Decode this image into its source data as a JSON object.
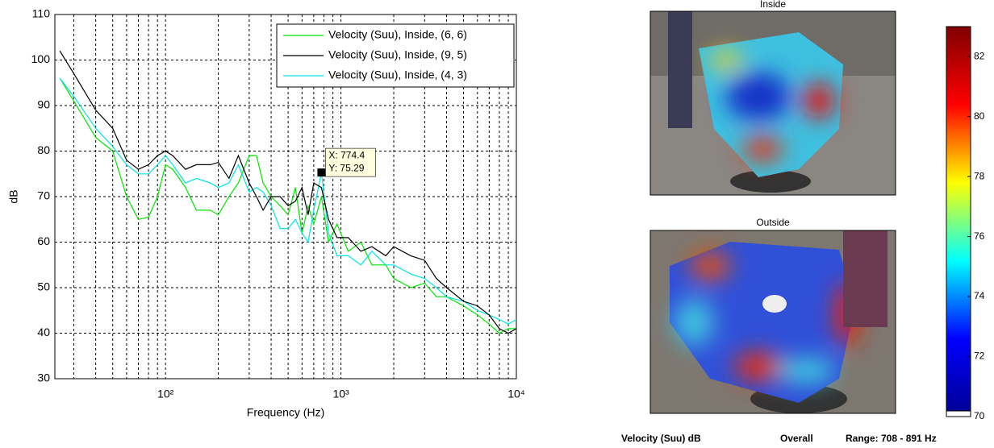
{
  "chart_data": [
    {
      "type": "line",
      "xlabel": "Frequency (Hz)",
      "ylabel": "dB",
      "xscale": "log",
      "grid": true,
      "legend": "top-right",
      "xlim": [
        23.4,
        10000
      ],
      "ylim": [
        30,
        110
      ],
      "xticks": [
        {
          "value": 100,
          "label": "10²"
        },
        {
          "value": 1000,
          "label": "10³"
        },
        {
          "value": 10000,
          "label": "10⁴"
        }
      ],
      "xminorticks": [
        30,
        40,
        50,
        60,
        70,
        80,
        90,
        200,
        300,
        400,
        500,
        600,
        700,
        800,
        900,
        2000,
        3000,
        4000,
        5000,
        6000,
        7000,
        8000,
        9000
      ],
      "yticks": [
        30,
        40,
        50,
        60,
        70,
        80,
        90,
        100,
        110
      ],
      "x": [
        25,
        30,
        40,
        50,
        60,
        70,
        80,
        90,
        100,
        110,
        130,
        150,
        180,
        200,
        230,
        260,
        300,
        330,
        360,
        400,
        450,
        500,
        550,
        600,
        650,
        700,
        774.4,
        850,
        950,
        1100,
        1300,
        1500,
        1800,
        2000,
        2500,
        3000,
        3500,
        4000,
        5000,
        6000,
        7000,
        8000,
        9000,
        10000
      ],
      "series": [
        {
          "name": "Velocity (Suu), Inside, (6, 6)",
          "color": "#00e600",
          "values": [
            96,
            91,
            83,
            80,
            70,
            65,
            65.5,
            70,
            77,
            76,
            72,
            67,
            67,
            66,
            70,
            73,
            79,
            79,
            73,
            70,
            68,
            66,
            72,
            62,
            68,
            64,
            70,
            60,
            64,
            58,
            60,
            55,
            55,
            52,
            50,
            51,
            48,
            48,
            46,
            44,
            42,
            40,
            41,
            41
          ]
        },
        {
          "name": "Velocity (Suu), Inside, (9, 5)",
          "color": "#000000",
          "values": [
            102,
            97,
            89,
            85,
            78,
            76,
            77,
            79,
            80,
            79,
            76,
            77,
            77,
            77.5,
            74,
            79,
            73,
            70,
            67,
            70,
            70,
            68,
            69,
            72,
            66,
            73,
            72,
            65,
            61,
            61,
            58,
            59,
            57,
            59,
            57,
            56,
            52,
            50,
            47,
            46,
            44,
            41,
            40,
            41
          ]
        },
        {
          "name": "Velocity (Suu), Inside, (4, 3)",
          "color": "#00e5e5",
          "values": [
            96,
            92,
            85,
            81,
            77,
            75,
            75,
            77,
            79,
            77,
            73,
            74,
            73,
            72,
            73,
            77,
            71,
            72,
            71,
            68,
            63,
            63,
            65,
            62,
            60,
            67,
            75.29,
            62,
            57,
            57,
            55,
            58,
            55,
            55,
            53,
            52,
            50,
            48,
            47,
            45,
            44,
            43,
            42,
            43
          ]
        }
      ],
      "datatip": {
        "x": 774.4,
        "y": 75.29,
        "label_x": "X: 774.4",
        "label_y": "Y: 75.29"
      }
    },
    {
      "type": "colorbar",
      "panel_titles": [
        "Inside",
        "Outside"
      ],
      "colormap": "jet",
      "clim": [
        70,
        83
      ],
      "ticks": [
        70,
        72,
        74,
        76,
        78,
        80,
        82
      ],
      "footer": [
        "Velocity (Suu) dB",
        "Overall",
        "Range: 708 - 891 Hz"
      ]
    }
  ]
}
